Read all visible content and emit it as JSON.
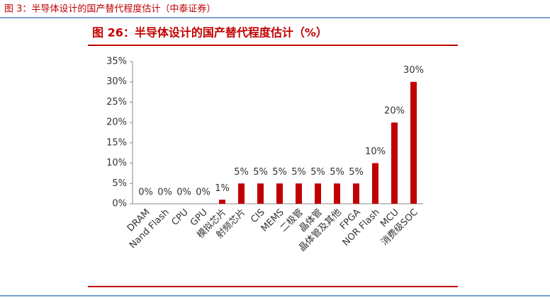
{
  "header": "图 3：半导体设计的国产替代程度估计（中泰证券）",
  "chart_data": {
    "type": "bar",
    "title": "图 26：半导体设计的国产替代程度估计（%）",
    "categories": [
      "DRAM",
      "Nand Flash",
      "CPU",
      "GPU",
      "模拟芯片",
      "射频芯片",
      "CIS",
      "MEMS",
      "二极管",
      "晶体管",
      "晶体管及其他",
      "FPGA",
      "NOR Flash",
      "MCU",
      "消费级SOC"
    ],
    "values": [
      0,
      0,
      0,
      0,
      1,
      5,
      5,
      5,
      5,
      5,
      5,
      5,
      10,
      20,
      30
    ],
    "value_labels": [
      "0%",
      "0%",
      "0%",
      "0%",
      "1%",
      "5%",
      "5%",
      "5%",
      "5%",
      "5%",
      "5%",
      "5%",
      "10%",
      "20%",
      "30%"
    ],
    "color": "#c00000",
    "ylim": [
      0,
      35
    ],
    "yticks": [
      {
        "value": 0,
        "label": "0%"
      },
      {
        "value": 5,
        "label": "5%"
      },
      {
        "value": 10,
        "label": "10%"
      },
      {
        "value": 15,
        "label": "15%"
      },
      {
        "value": 20,
        "label": "20%"
      },
      {
        "value": 25,
        "label": "25%"
      },
      {
        "value": 30,
        "label": "30%"
      },
      {
        "value": 35,
        "label": "35%"
      }
    ],
    "grid": false
  }
}
